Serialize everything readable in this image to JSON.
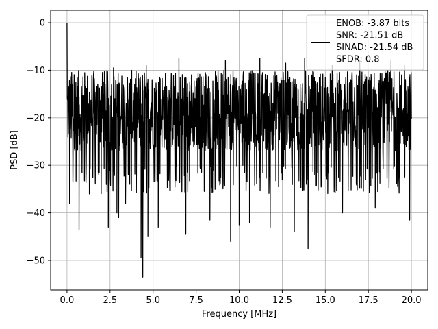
{
  "chart_data": {
    "type": "line",
    "xlabel": "Frequency [MHz]",
    "ylabel": "PSD [dB]",
    "xlim": [
      -0.95,
      20.95
    ],
    "ylim": [
      -56.2,
      2.6
    ],
    "xticks": [
      0.0,
      2.5,
      5.0,
      7.5,
      10.0,
      12.5,
      15.0,
      17.5,
      20.0
    ],
    "xtick_labels": [
      "0.0",
      "2.5",
      "5.0",
      "7.5",
      "10.0",
      "12.5",
      "15.0",
      "17.5",
      "20.0"
    ],
    "yticks": [
      0,
      -10,
      -20,
      -30,
      -40,
      -50
    ],
    "ytick_labels": [
      "0",
      "−10",
      "−20",
      "−30",
      "−40",
      "−50"
    ],
    "grid": true,
    "legend": {
      "position": "top-right",
      "lines": [
        "ENOB: -3.87 bits",
        "SNR: -21.51 dB",
        "SINAD: -21.54 dB",
        "SFDR: 0.8"
      ]
    },
    "series": [
      {
        "color": "#000000",
        "x_range": [
          0,
          20
        ],
        "description_points": {
          "peak": [
            0.0,
            0.0
          ],
          "typical_range": [
            -30,
            -10
          ],
          "minima": [
            [
              0.15,
              -38
            ],
            [
              0.7,
              -43.5
            ],
            [
              1.3,
              -36
            ],
            [
              2.4,
              -43
            ],
            [
              2.9,
              -40
            ],
            [
              3.0,
              -41
            ],
            [
              3.4,
              -38
            ],
            [
              4.3,
              -49.5
            ],
            [
              4.4,
              -53.5
            ],
            [
              4.7,
              -45
            ],
            [
              5.3,
              -43
            ],
            [
              6.9,
              -44.5
            ],
            [
              8.3,
              -41.5
            ],
            [
              9.5,
              -46
            ],
            [
              10.0,
              -42.5
            ],
            [
              10.6,
              -42
            ],
            [
              11.8,
              -43
            ],
            [
              13.2,
              -44
            ],
            [
              14.0,
              -47.5
            ],
            [
              16.0,
              -40
            ],
            [
              17.9,
              -39
            ],
            [
              19.9,
              -41.5
            ]
          ],
          "maxima": [
            [
              2.7,
              -9.5
            ],
            [
              4.6,
              -9
            ],
            [
              6.5,
              -7.5
            ],
            [
              9.2,
              -8
            ],
            [
              11.2,
              -7.5
            ],
            [
              12.7,
              -8.5
            ],
            [
              13.8,
              -7.5
            ],
            [
              15.4,
              -9
            ],
            [
              17.0,
              -8
            ],
            [
              18.8,
              -8
            ],
            [
              19.6,
              -9
            ]
          ]
        }
      }
    ]
  }
}
